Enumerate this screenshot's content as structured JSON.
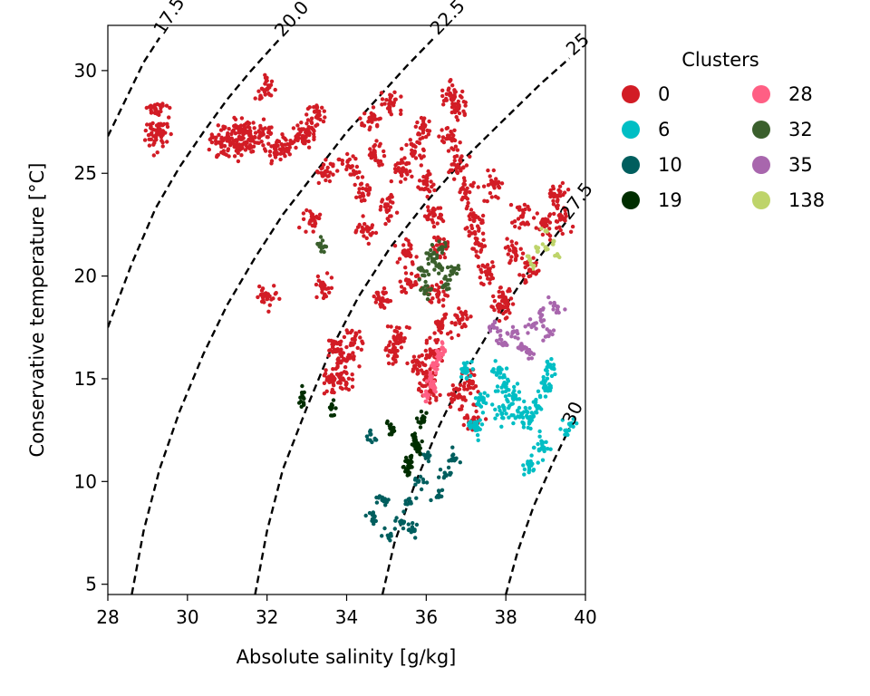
{
  "chart_data": {
    "type": "scatter",
    "title": "",
    "xlabel": "Absolute salinity [g/kg]",
    "ylabel": "Conservative temperature [°C]",
    "xlim": [
      28,
      40
    ],
    "ylim": [
      4.5,
      32.2
    ],
    "xticks": [
      28,
      30,
      32,
      34,
      36,
      38,
      40
    ],
    "xtick_labels": [
      "28",
      "30",
      "32",
      "34",
      "36",
      "38",
      "40"
    ],
    "yticks": [
      5,
      10,
      15,
      20,
      25,
      30
    ],
    "ytick_labels": [
      "5",
      "10",
      "15",
      "20",
      "25",
      "30"
    ],
    "grid": false,
    "legend": {
      "title": "Clusters",
      "placement": "outside-right-top",
      "columns": 2,
      "entries": [
        {
          "label": "0",
          "color": "#d21c25"
        },
        {
          "label": "6",
          "color": "#00bec4"
        },
        {
          "label": "10",
          "color": "#005e5e"
        },
        {
          "label": "19",
          "color": "#002e00"
        },
        {
          "label": "28",
          "color": "#ff5f84"
        },
        {
          "label": "32",
          "color": "#3a5f2c"
        },
        {
          "label": "35",
          "color": "#a866ad"
        },
        {
          "label": "138",
          "color": "#bed46a"
        }
      ]
    },
    "density_contours": [
      {
        "label": "17.5",
        "points": [
          [
            28.0,
            26.8
          ],
          [
            28.3,
            28.0
          ],
          [
            28.6,
            29.2
          ],
          [
            28.9,
            30.4
          ],
          [
            29.3,
            31.6
          ]
        ]
      },
      {
        "label": "20.0",
        "points": [
          [
            28.0,
            17.5
          ],
          [
            28.6,
            20.6
          ],
          [
            29.2,
            23.3
          ],
          [
            29.8,
            25.3
          ],
          [
            30.4,
            27.0
          ],
          [
            31.0,
            28.6
          ],
          [
            31.6,
            30.0
          ],
          [
            32.3,
            31.5
          ]
        ]
      },
      {
        "label": "22.5",
        "points": [
          [
            28.6,
            4.5
          ],
          [
            28.9,
            7.6
          ],
          [
            29.3,
            10.6
          ],
          [
            29.8,
            13.4
          ],
          [
            30.4,
            16.2
          ],
          [
            31.0,
            18.6
          ],
          [
            31.7,
            20.9
          ],
          [
            32.4,
            23.0
          ],
          [
            33.2,
            25.0
          ],
          [
            34.0,
            27.0
          ],
          [
            34.8,
            28.7
          ],
          [
            35.5,
            30.2
          ],
          [
            36.2,
            31.6
          ]
        ]
      },
      {
        "label": "25",
        "points": [
          [
            31.7,
            4.5
          ],
          [
            32.0,
            7.6
          ],
          [
            32.4,
            10.6
          ],
          [
            33.0,
            13.6
          ],
          [
            33.6,
            16.4
          ],
          [
            34.3,
            19.0
          ],
          [
            35.1,
            21.4
          ],
          [
            36.0,
            23.6
          ],
          [
            37.0,
            25.8
          ],
          [
            38.0,
            27.7
          ],
          [
            38.9,
            29.4
          ],
          [
            39.6,
            30.6
          ]
        ]
      },
      {
        "label": "27.5",
        "points": [
          [
            34.9,
            4.5
          ],
          [
            35.2,
            7.0
          ],
          [
            35.7,
            9.8
          ],
          [
            36.3,
            12.6
          ],
          [
            37.0,
            15.4
          ],
          [
            37.8,
            18.0
          ],
          [
            38.6,
            20.3
          ],
          [
            39.5,
            22.6
          ]
        ]
      },
      {
        "label": "30",
        "points": [
          [
            38.0,
            4.5
          ],
          [
            38.3,
            6.6
          ],
          [
            38.7,
            8.8
          ],
          [
            39.2,
            11.0
          ],
          [
            39.6,
            12.6
          ]
        ]
      }
    ],
    "series": [
      {
        "name": "0",
        "color": "#d21c25",
        "values": [
          {
            "x": 29.2,
            "y": 28.1
          },
          {
            "x": 29.2,
            "y": 26.8
          },
          {
            "x": 29.3,
            "y": 26.9
          },
          {
            "x": 30.8,
            "y": 26.5
          },
          {
            "x": 31.0,
            "y": 26.6
          },
          {
            "x": 31.3,
            "y": 27.0
          },
          {
            "x": 31.5,
            "y": 27.0
          },
          {
            "x": 31.6,
            "y": 26.6
          },
          {
            "x": 31.9,
            "y": 26.9
          },
          {
            "x": 32.0,
            "y": 29.1
          },
          {
            "x": 32.2,
            "y": 26.2
          },
          {
            "x": 32.4,
            "y": 26.2
          },
          {
            "x": 31.3,
            "y": 26.3
          },
          {
            "x": 32.0,
            "y": 19.0
          },
          {
            "x": 32.9,
            "y": 26.8
          },
          {
            "x": 33.0,
            "y": 27.1
          },
          {
            "x": 33.1,
            "y": 22.7
          },
          {
            "x": 33.4,
            "y": 19.5
          },
          {
            "x": 33.2,
            "y": 28.0
          },
          {
            "x": 33.5,
            "y": 25.1
          },
          {
            "x": 33.7,
            "y": 16.4
          },
          {
            "x": 33.6,
            "y": 14.9
          },
          {
            "x": 33.9,
            "y": 15.0
          },
          {
            "x": 34.0,
            "y": 15.9
          },
          {
            "x": 34.1,
            "y": 25.3
          },
          {
            "x": 34.4,
            "y": 24.0
          },
          {
            "x": 34.5,
            "y": 22.3
          },
          {
            "x": 34.6,
            "y": 27.6
          },
          {
            "x": 34.7,
            "y": 26.0
          },
          {
            "x": 34.9,
            "y": 18.9
          },
          {
            "x": 34.2,
            "y": 16.9
          },
          {
            "x": 35.0,
            "y": 23.4
          },
          {
            "x": 35.2,
            "y": 16.3
          },
          {
            "x": 35.3,
            "y": 17.1
          },
          {
            "x": 35.4,
            "y": 25.1
          },
          {
            "x": 35.1,
            "y": 28.4
          },
          {
            "x": 35.5,
            "y": 21.1
          },
          {
            "x": 35.6,
            "y": 19.7
          },
          {
            "x": 35.8,
            "y": 15.8
          },
          {
            "x": 36.9,
            "y": 17.9
          },
          {
            "x": 37.1,
            "y": 14.8
          },
          {
            "x": 36.6,
            "y": 28.8
          },
          {
            "x": 36.8,
            "y": 28.2
          },
          {
            "x": 38.2,
            "y": 21.2
          },
          {
            "x": 38.4,
            "y": 22.9
          },
          {
            "x": 38.6,
            "y": 20.3
          },
          {
            "x": 38.9,
            "y": 22.6
          },
          {
            "x": 39.3,
            "y": 23.9
          },
          {
            "x": 39.4,
            "y": 22.9
          },
          {
            "x": 37.5,
            "y": 20.2
          },
          {
            "x": 37.7,
            "y": 24.4
          },
          {
            "x": 37.9,
            "y": 19.0
          },
          {
            "x": 38.0,
            "y": 18.5
          },
          {
            "x": 36.8,
            "y": 14.1
          },
          {
            "x": 37.2,
            "y": 13.1
          },
          {
            "x": 35.7,
            "y": 26.0
          },
          {
            "x": 35.9,
            "y": 27.2
          },
          {
            "x": 36.0,
            "y": 24.5
          },
          {
            "x": 36.2,
            "y": 23.0
          },
          {
            "x": 36.4,
            "y": 21.5
          },
          {
            "x": 36.6,
            "y": 26.7
          },
          {
            "x": 36.8,
            "y": 25.3
          },
          {
            "x": 37.0,
            "y": 24.1
          },
          {
            "x": 37.2,
            "y": 22.7
          },
          {
            "x": 37.3,
            "y": 21.6
          },
          {
            "x": 36.3,
            "y": 19.1
          },
          {
            "x": 36.4,
            "y": 17.6
          },
          {
            "x": 36.2,
            "y": 16.2
          },
          {
            "x": 36.0,
            "y": 15.1
          },
          {
            "x": 36.1,
            "y": 14.4
          }
        ]
      },
      {
        "name": "6",
        "color": "#00bec4",
        "values": [
          {
            "x": 37.8,
            "y": 15.3
          },
          {
            "x": 38.0,
            "y": 14.6
          },
          {
            "x": 38.2,
            "y": 14.1
          },
          {
            "x": 38.4,
            "y": 13.3
          },
          {
            "x": 38.6,
            "y": 12.9
          },
          {
            "x": 38.8,
            "y": 13.6
          },
          {
            "x": 39.0,
            "y": 14.6
          },
          {
            "x": 39.1,
            "y": 15.6
          },
          {
            "x": 38.9,
            "y": 11.6
          },
          {
            "x": 38.6,
            "y": 10.8
          },
          {
            "x": 37.9,
            "y": 13.3
          },
          {
            "x": 37.4,
            "y": 14.0
          },
          {
            "x": 37.0,
            "y": 15.3
          },
          {
            "x": 37.3,
            "y": 12.6
          },
          {
            "x": 39.6,
            "y": 12.8
          }
        ]
      },
      {
        "name": "10",
        "color": "#005e5e",
        "values": [
          {
            "x": 35.4,
            "y": 8.0
          },
          {
            "x": 35.6,
            "y": 9.0
          },
          {
            "x": 35.8,
            "y": 10.0
          },
          {
            "x": 36.0,
            "y": 11.2
          },
          {
            "x": 36.3,
            "y": 9.3
          },
          {
            "x": 36.5,
            "y": 10.3
          },
          {
            "x": 36.7,
            "y": 11.1
          },
          {
            "x": 34.9,
            "y": 9.1
          },
          {
            "x": 34.7,
            "y": 8.3
          },
          {
            "x": 34.6,
            "y": 12.3
          },
          {
            "x": 35.1,
            "y": 7.4
          },
          {
            "x": 35.7,
            "y": 7.6
          }
        ]
      },
      {
        "name": "19",
        "color": "#002e00",
        "values": [
          {
            "x": 35.6,
            "y": 11.0
          },
          {
            "x": 35.7,
            "y": 12.0
          },
          {
            "x": 35.9,
            "y": 13.0
          },
          {
            "x": 35.8,
            "y": 11.6
          },
          {
            "x": 35.5,
            "y": 10.6
          },
          {
            "x": 32.9,
            "y": 14.1
          },
          {
            "x": 33.6,
            "y": 13.6
          },
          {
            "x": 35.1,
            "y": 12.6
          }
        ]
      },
      {
        "name": "28",
        "color": "#ff5f84",
        "values": [
          {
            "x": 36.0,
            "y": 14.2
          },
          {
            "x": 36.1,
            "y": 15.0
          },
          {
            "x": 36.2,
            "y": 15.6
          },
          {
            "x": 36.3,
            "y": 16.1
          },
          {
            "x": 36.4,
            "y": 16.5
          },
          {
            "x": 36.2,
            "y": 14.6
          }
        ]
      },
      {
        "name": "32",
        "color": "#3a5f2c",
        "values": [
          {
            "x": 35.9,
            "y": 20.3
          },
          {
            "x": 36.1,
            "y": 21.0
          },
          {
            "x": 36.3,
            "y": 20.5
          },
          {
            "x": 36.5,
            "y": 19.6
          },
          {
            "x": 36.7,
            "y": 20.3
          },
          {
            "x": 36.0,
            "y": 19.3
          },
          {
            "x": 36.4,
            "y": 21.4
          },
          {
            "x": 33.4,
            "y": 21.4
          }
        ]
      },
      {
        "name": "35",
        "color": "#a866ad",
        "values": [
          {
            "x": 37.7,
            "y": 17.5
          },
          {
            "x": 37.9,
            "y": 16.7
          },
          {
            "x": 38.2,
            "y": 17.3
          },
          {
            "x": 38.4,
            "y": 16.6
          },
          {
            "x": 38.7,
            "y": 17.6
          },
          {
            "x": 38.9,
            "y": 18.1
          },
          {
            "x": 39.1,
            "y": 17.3
          },
          {
            "x": 39.3,
            "y": 18.5
          },
          {
            "x": 38.6,
            "y": 16.3
          }
        ]
      },
      {
        "name": "138",
        "color": "#bed46a",
        "values": [
          {
            "x": 38.6,
            "y": 20.8
          },
          {
            "x": 38.8,
            "y": 21.2
          },
          {
            "x": 39.0,
            "y": 21.4
          },
          {
            "x": 39.2,
            "y": 21.7
          },
          {
            "x": 39.3,
            "y": 21.0
          },
          {
            "x": 39.0,
            "y": 22.2
          },
          {
            "x": 38.7,
            "y": 20.5
          }
        ]
      }
    ]
  }
}
